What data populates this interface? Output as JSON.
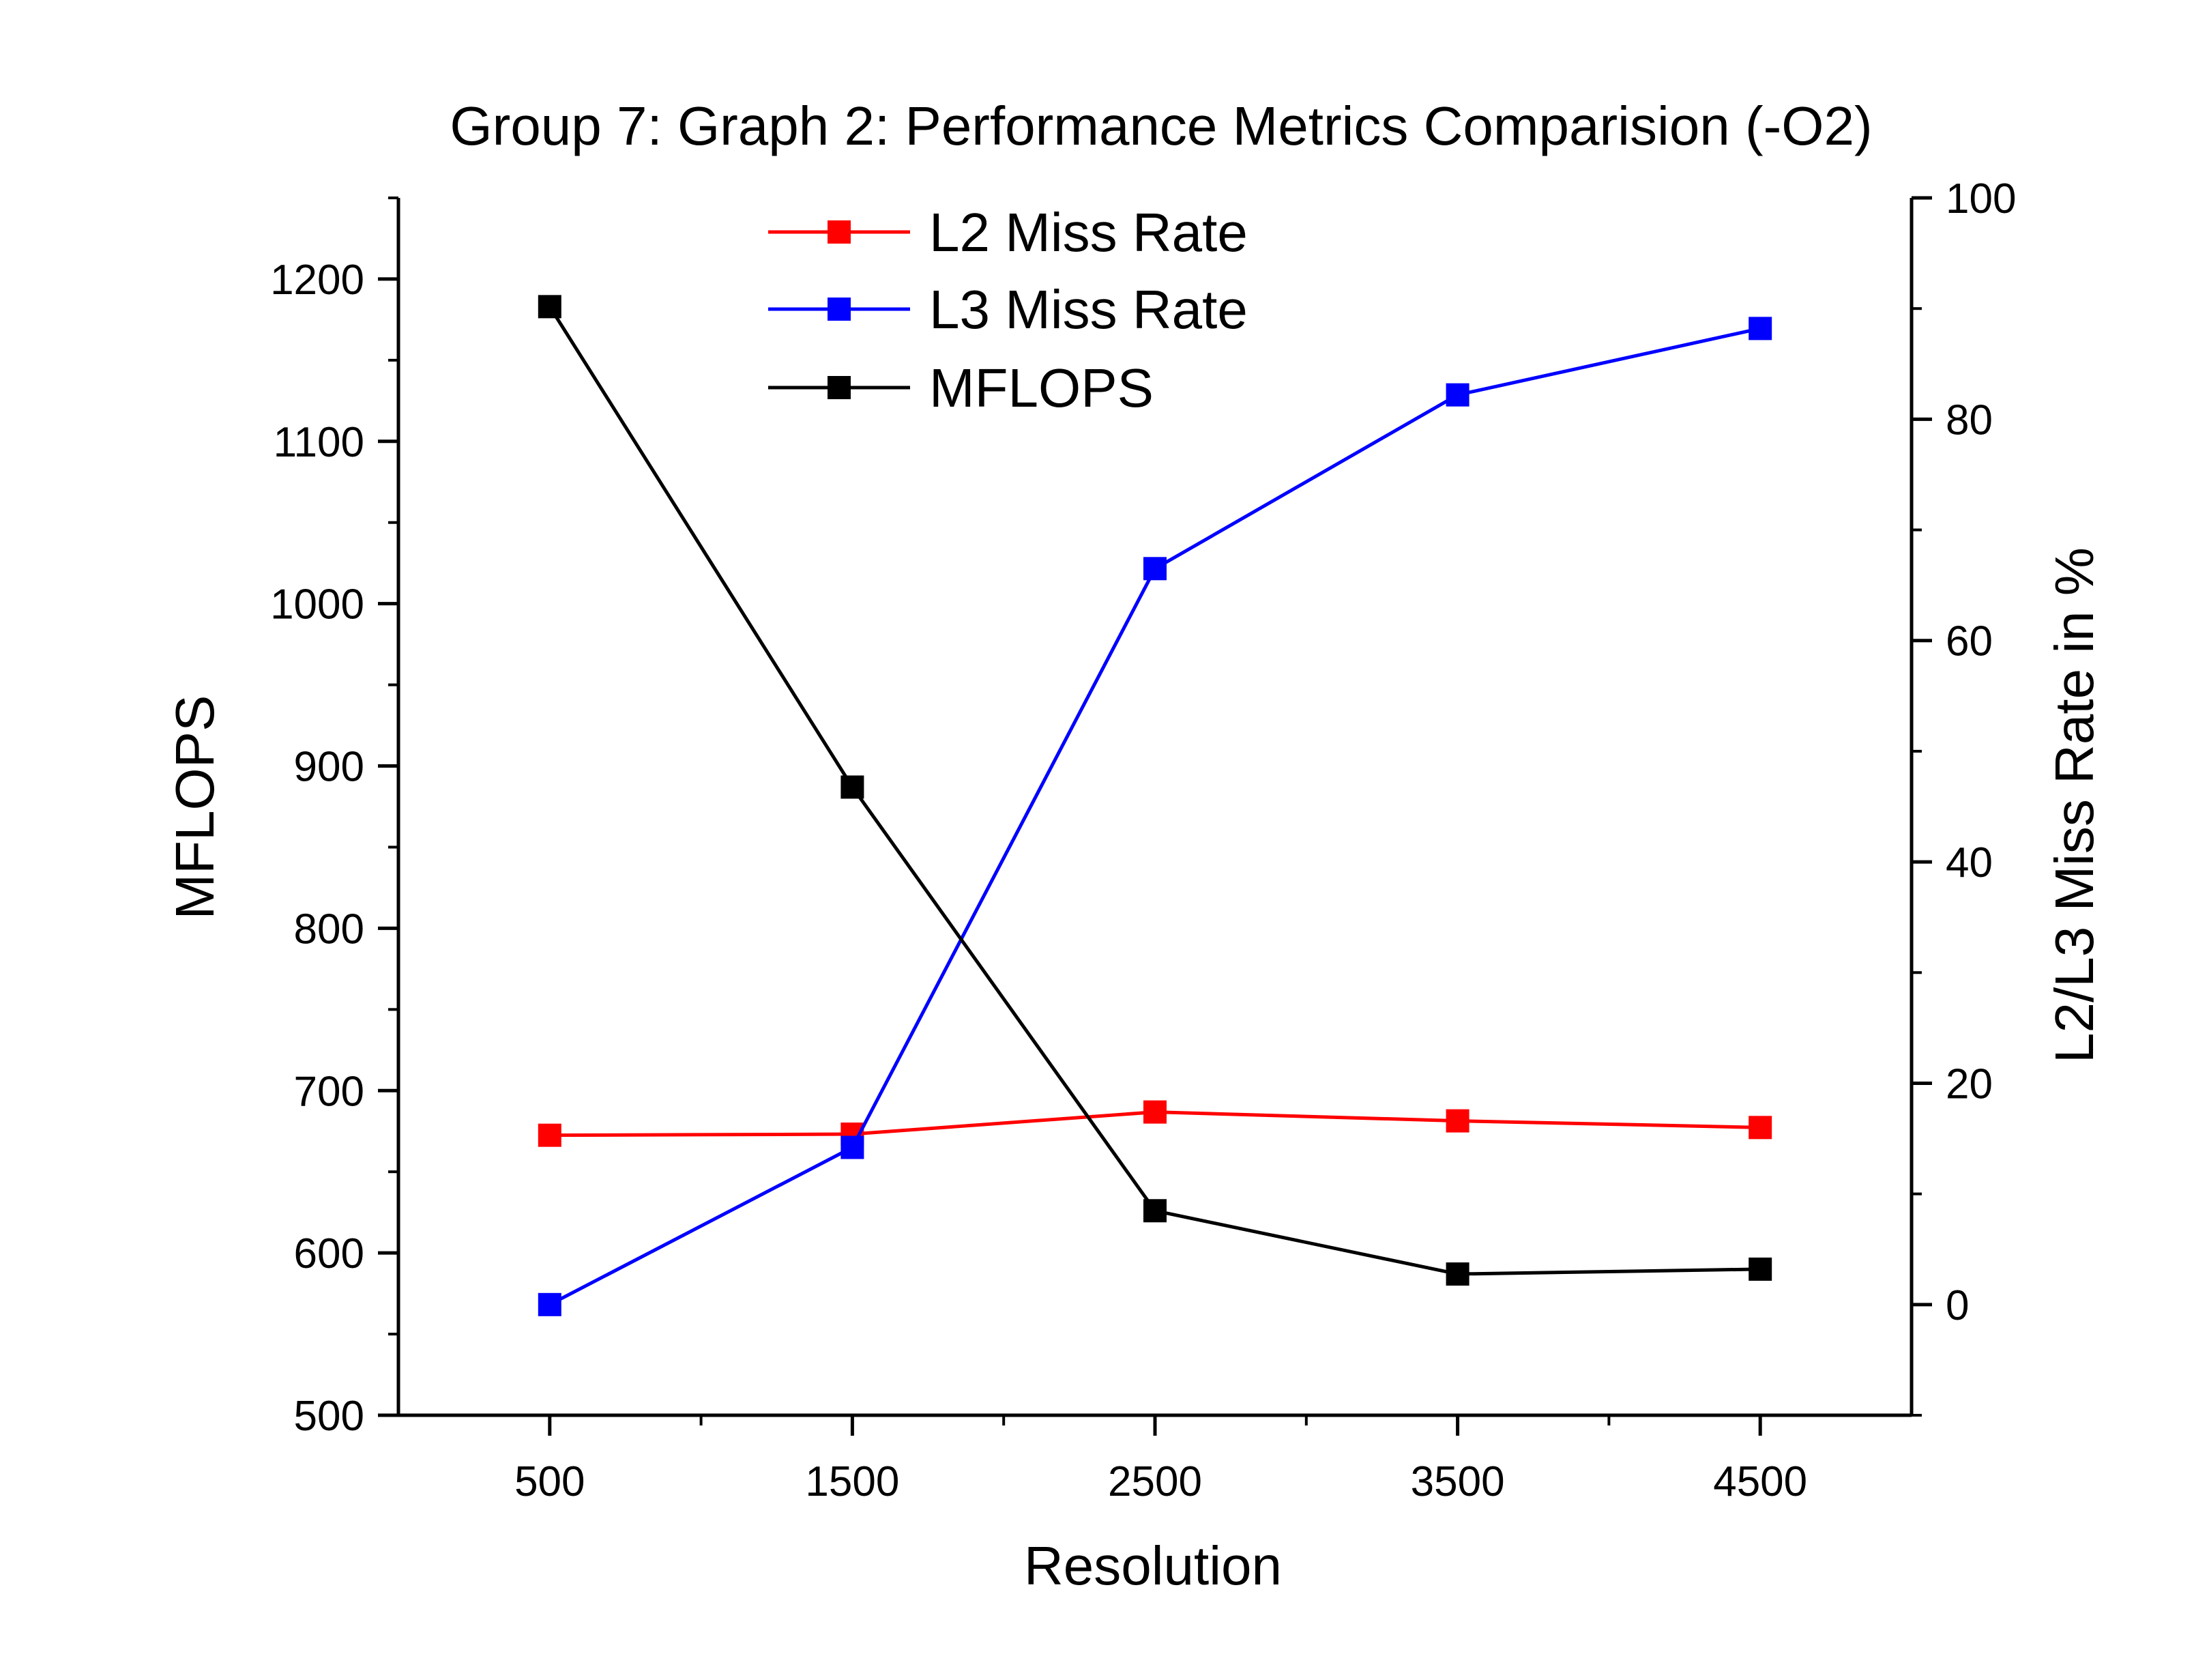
{
  "chart_data": {
    "type": "line",
    "title": "Group 7: Graph 2: Performance Metrics Comparision (-O2)",
    "xlabel": "Resolution",
    "ylabel_left": "MFLOPS",
    "ylabel_right": "L2/L3 Miss Rate in %",
    "x": [
      500,
      1500,
      2500,
      3500,
      4500
    ],
    "x_ticks": [
      "500",
      "1500",
      "2500",
      "3500",
      "4500"
    ],
    "xlim": [
      0,
      5000
    ],
    "ylim_left": [
      500,
      1250
    ],
    "yticks_left": [
      "500",
      "600",
      "700",
      "800",
      "900",
      "1000",
      "1100",
      "1200"
    ],
    "ylim_right": [
      -10,
      100
    ],
    "yticks_right": [
      "0",
      "20",
      "40",
      "60",
      "80",
      "100"
    ],
    "grid": false,
    "legend_position": "top-center",
    "series": [
      {
        "name": "L2 Miss Rate",
        "axis": "right",
        "color": "#ff0000",
        "marker": "square",
        "values": [
          15.3,
          15.4,
          17.4,
          16.6,
          16.0
        ]
      },
      {
        "name": "L3 Miss Rate",
        "axis": "right",
        "color": "#0000ff",
        "marker": "square",
        "values": [
          0.0,
          14.2,
          66.5,
          82.2,
          88.2
        ]
      },
      {
        "name": "MFLOPS",
        "axis": "left",
        "color": "#000000",
        "marker": "square",
        "values": [
          1183,
          887,
          626,
          587,
          590
        ]
      }
    ]
  }
}
